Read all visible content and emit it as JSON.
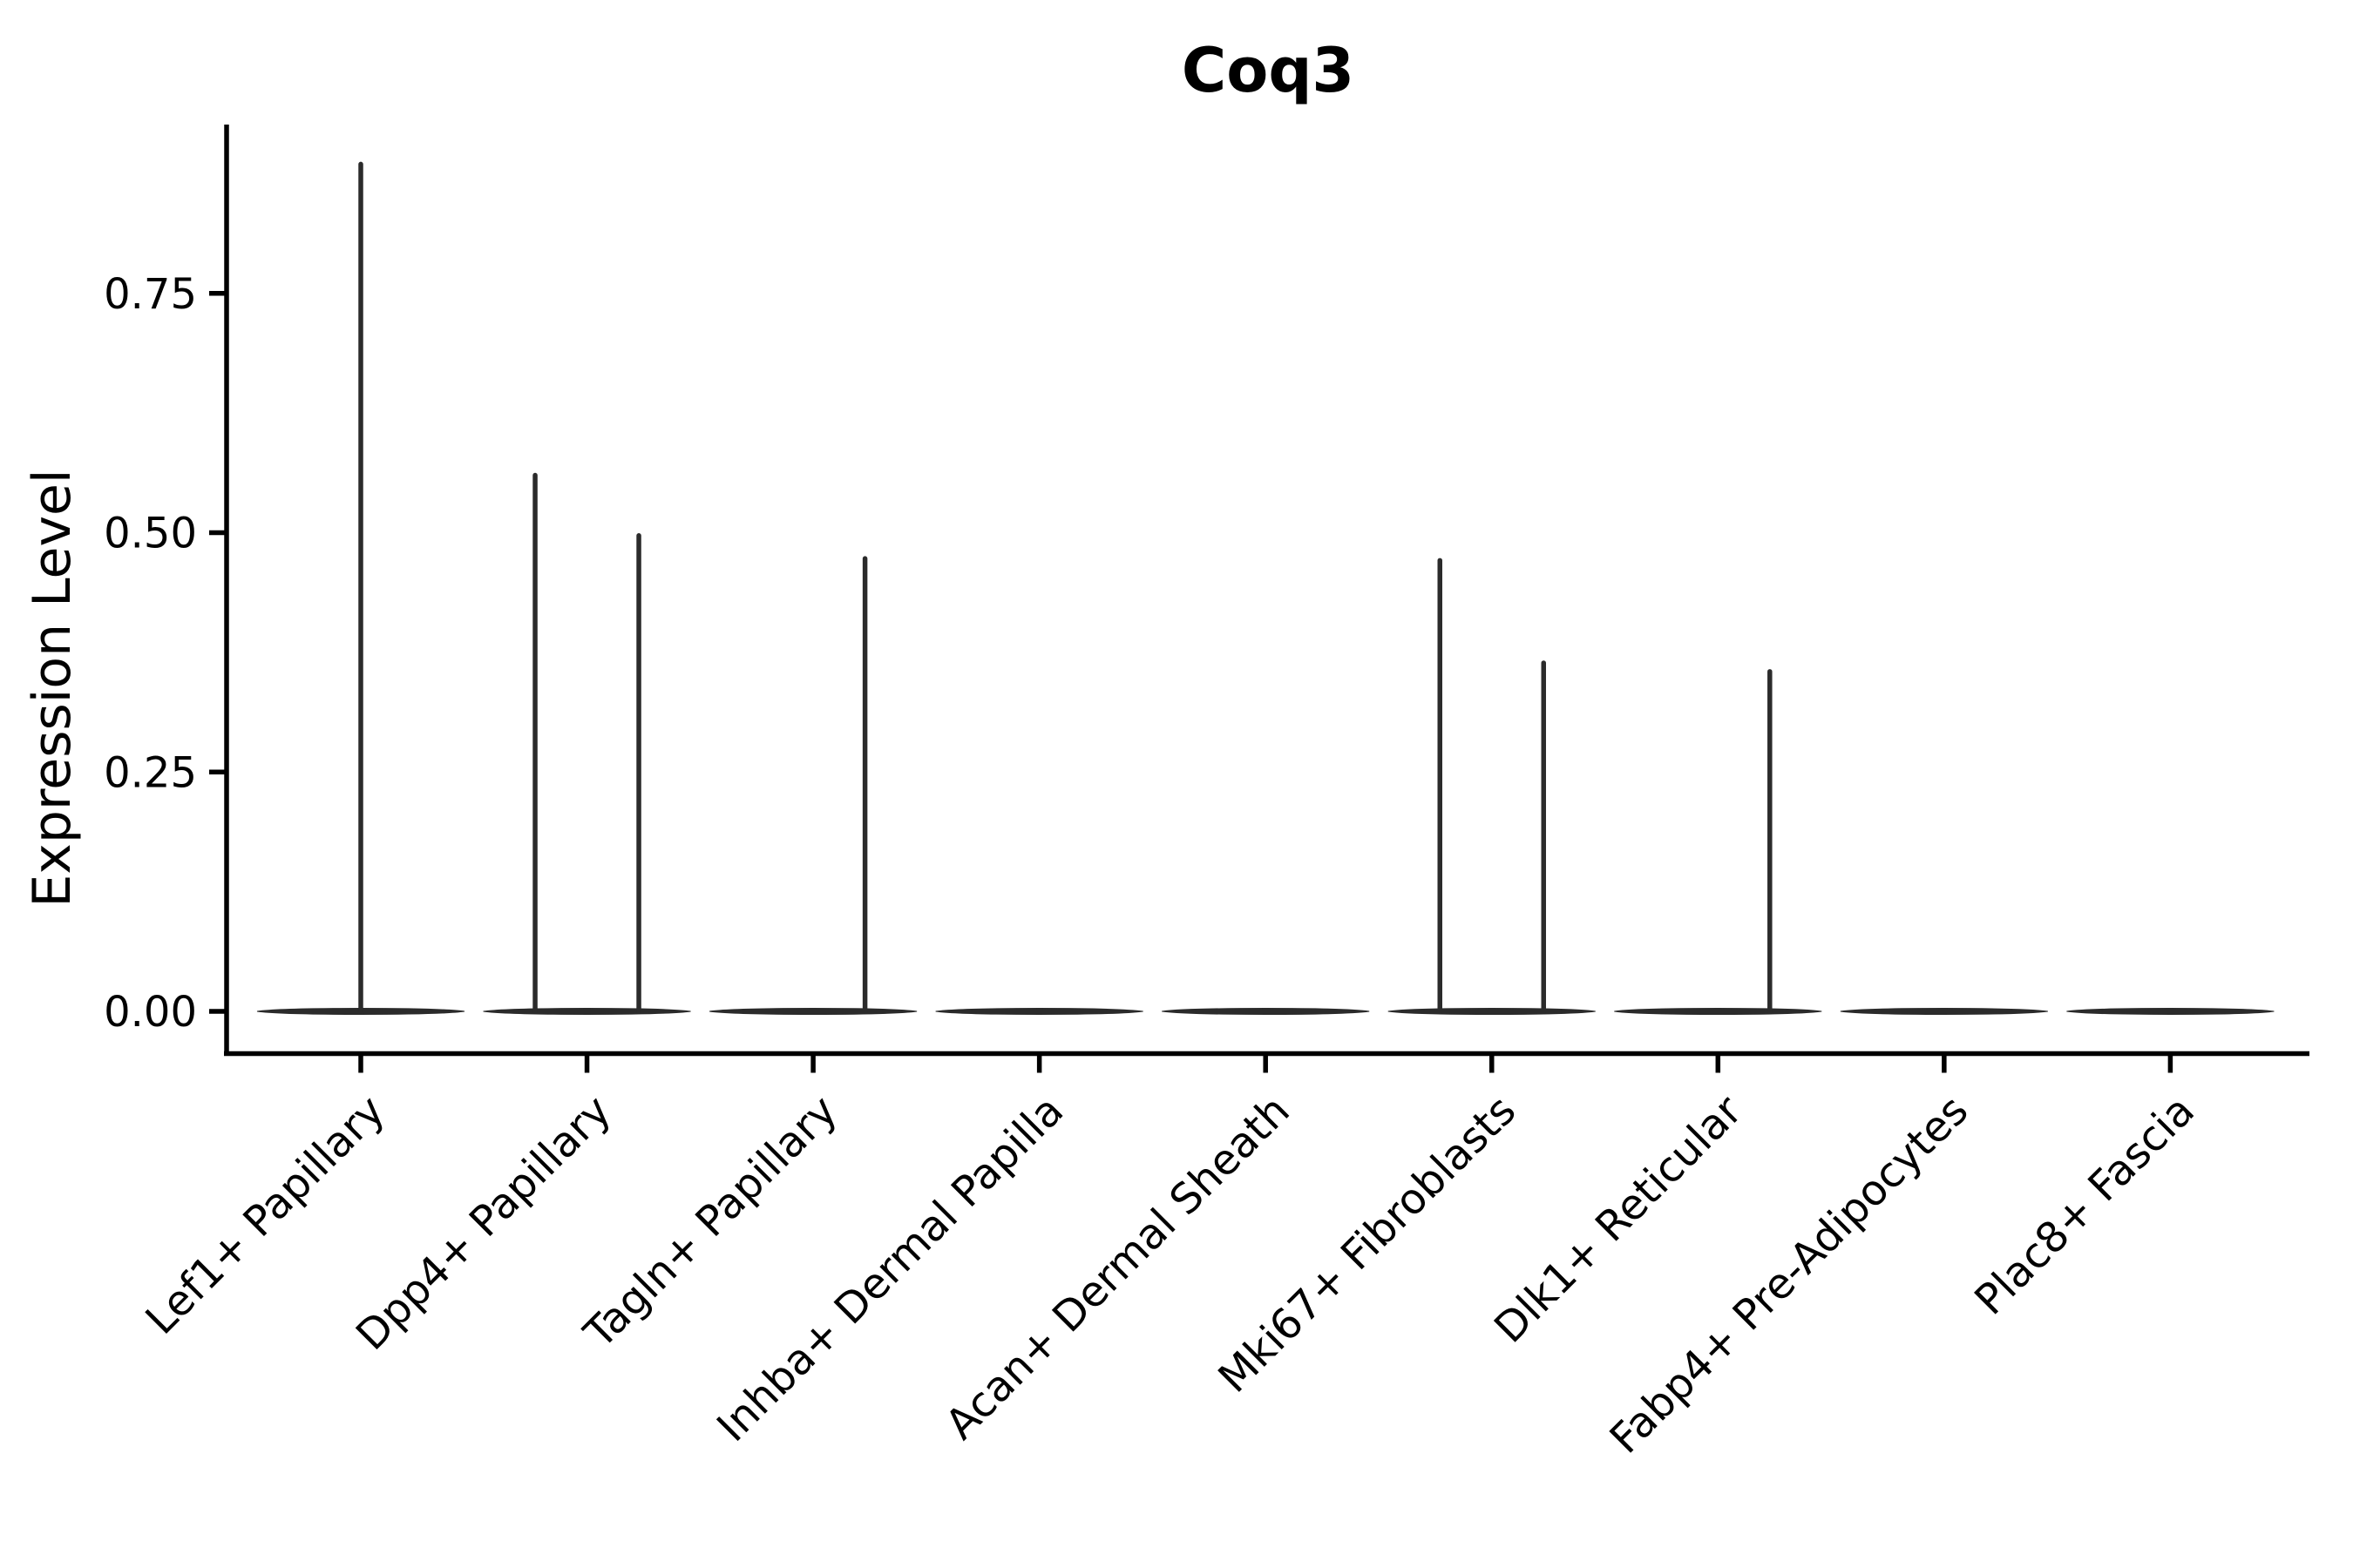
{
  "title": "Coq3",
  "y_axis": {
    "label": "Expression Level",
    "tick_labels": [
      "0.00",
      "0.25",
      "0.50",
      "0.75"
    ]
  },
  "chart_data": {
    "type": "violin",
    "title": "Coq3",
    "ylabel": "Expression Level",
    "xlabel": "",
    "ylim": [
      0,
      0.93
    ],
    "ytick_values": [
      0,
      0.25,
      0.5,
      0.75
    ],
    "ytick_labels": [
      "0.00",
      "0.25",
      "0.50",
      "0.75"
    ],
    "grid": false,
    "legend": "none",
    "categories": [
      "Lef1+ Papillary",
      "Dpp4+ Papillary",
      "Tagln+ Papillary",
      "Inhba+ Dermal Papilla",
      "Acan+ Dermal Sheath",
      "Mki67+ Fibroblasts",
      "Dlk1+ Reticular",
      "Fabp4+ Pre-Adipocytes",
      "Plac8+ Fascia"
    ],
    "violins": [
      {
        "category": "Lef1+ Papillary",
        "baseline_value": 0,
        "spikes": [
          {
            "position": "center",
            "max": 0.885
          }
        ]
      },
      {
        "category": "Dpp4+ Papillary",
        "baseline_value": 0,
        "spikes": [
          {
            "position": "left",
            "max": 0.56
          },
          {
            "position": "right",
            "max": 0.497
          }
        ]
      },
      {
        "category": "Tagln+ Papillary",
        "baseline_value": 0,
        "spikes": [
          {
            "position": "right",
            "max": 0.473
          }
        ]
      },
      {
        "category": "Inhba+ Dermal Papilla",
        "baseline_value": 0,
        "spikes": []
      },
      {
        "category": "Acan+ Dermal Sheath",
        "baseline_value": 0,
        "spikes": []
      },
      {
        "category": "Mki67+ Fibroblasts",
        "baseline_value": 0,
        "spikes": [
          {
            "position": "left",
            "max": 0.471
          },
          {
            "position": "right",
            "max": 0.364
          }
        ]
      },
      {
        "category": "Dlk1+ Reticular",
        "baseline_value": 0,
        "spikes": [
          {
            "position": "right",
            "max": 0.355
          }
        ]
      },
      {
        "category": "Fabp4+ Pre-Adipocytes",
        "baseline_value": 0,
        "spikes": []
      },
      {
        "category": "Plac8+ Fascia",
        "baseline_value": 0,
        "spikes": []
      }
    ],
    "colors": {
      "violin_line": "#2b2b2b",
      "axis": "#000000",
      "text": "#000000",
      "background": "#ffffff"
    }
  }
}
